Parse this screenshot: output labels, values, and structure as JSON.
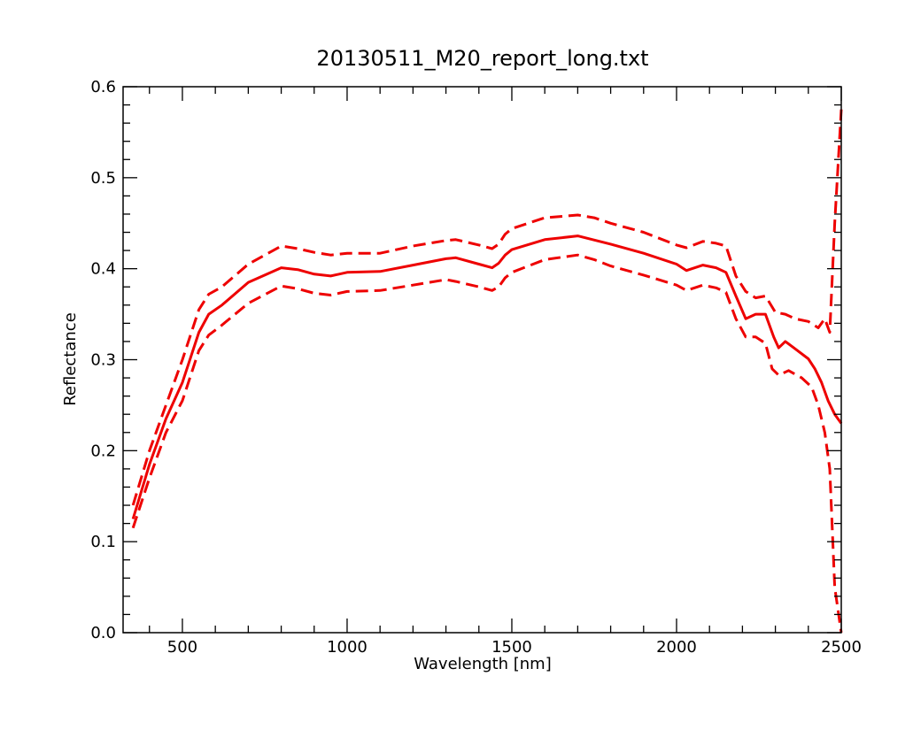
{
  "chart_data": {
    "type": "line",
    "title": "20130511_M20_report_long.txt",
    "xlabel": "Wavelength [nm]",
    "ylabel": "Reflectance",
    "xlim": [
      320,
      2500
    ],
    "ylim": [
      0.0,
      0.6
    ],
    "x_ticks": [
      500,
      1000,
      1500,
      2000,
      2500
    ],
    "x_tick_labels": [
      "500",
      "1000",
      "1500",
      "2000",
      "2500"
    ],
    "y_ticks": [
      0.0,
      0.1,
      0.2,
      0.3,
      0.4,
      0.5,
      0.6
    ],
    "y_tick_labels": [
      "0.0",
      "0.1",
      "0.2",
      "0.3",
      "0.4",
      "0.5",
      "0.6"
    ],
    "grid": false,
    "color": "#ee0000",
    "series": [
      {
        "style": "solid",
        "x": [
          350,
          400,
          450,
          500,
          550,
          580,
          620,
          700,
          800,
          850,
          900,
          950,
          1000,
          1100,
          1200,
          1300,
          1330,
          1400,
          1440,
          1460,
          1480,
          1500,
          1600,
          1700,
          1800,
          1900,
          2000,
          2030,
          2080,
          2120,
          2150,
          2180,
          2210,
          2240,
          2270,
          2295,
          2310,
          2330,
          2360,
          2400,
          2420,
          2440,
          2460,
          2480,
          2500
        ],
        "y": [
          0.125,
          0.185,
          0.235,
          0.275,
          0.33,
          0.35,
          0.36,
          0.385,
          0.401,
          0.399,
          0.394,
          0.392,
          0.396,
          0.397,
          0.404,
          0.411,
          0.412,
          0.405,
          0.401,
          0.406,
          0.415,
          0.421,
          0.432,
          0.436,
          0.427,
          0.417,
          0.405,
          0.398,
          0.404,
          0.401,
          0.396,
          0.37,
          0.345,
          0.35,
          0.35,
          0.325,
          0.313,
          0.32,
          0.312,
          0.301,
          0.29,
          0.275,
          0.255,
          0.24,
          0.23
        ]
      },
      {
        "style": "dashed",
        "x": [
          350,
          400,
          450,
          500,
          550,
          580,
          620,
          700,
          800,
          850,
          900,
          950,
          1000,
          1100,
          1200,
          1300,
          1330,
          1400,
          1440,
          1460,
          1480,
          1500,
          1600,
          1700,
          1750,
          1800,
          1900,
          2000,
          2030,
          2080,
          2120,
          2150,
          2180,
          2210,
          2240,
          2270,
          2300,
          2330,
          2360,
          2400,
          2430,
          2450,
          2465,
          2480,
          2500
        ],
        "y": [
          0.14,
          0.2,
          0.25,
          0.3,
          0.355,
          0.372,
          0.38,
          0.405,
          0.425,
          0.422,
          0.418,
          0.415,
          0.417,
          0.417,
          0.425,
          0.431,
          0.432,
          0.426,
          0.422,
          0.427,
          0.438,
          0.444,
          0.456,
          0.459,
          0.456,
          0.45,
          0.44,
          0.426,
          0.423,
          0.43,
          0.428,
          0.425,
          0.392,
          0.375,
          0.368,
          0.37,
          0.352,
          0.35,
          0.345,
          0.342,
          0.335,
          0.345,
          0.33,
          0.45,
          0.575
        ]
      },
      {
        "style": "dashed",
        "x": [
          350,
          400,
          450,
          500,
          550,
          580,
          620,
          700,
          800,
          850,
          900,
          950,
          1000,
          1100,
          1200,
          1300,
          1330,
          1400,
          1440,
          1460,
          1480,
          1500,
          1600,
          1700,
          1750,
          1800,
          1900,
          2000,
          2030,
          2080,
          2120,
          2150,
          2180,
          2210,
          2240,
          2270,
          2290,
          2310,
          2340,
          2380,
          2410,
          2430,
          2450,
          2465,
          2480,
          2500
        ],
        "y": [
          0.115,
          0.17,
          0.22,
          0.255,
          0.31,
          0.327,
          0.338,
          0.362,
          0.381,
          0.378,
          0.373,
          0.371,
          0.375,
          0.376,
          0.382,
          0.388,
          0.386,
          0.38,
          0.376,
          0.38,
          0.39,
          0.396,
          0.41,
          0.415,
          0.41,
          0.403,
          0.393,
          0.382,
          0.376,
          0.382,
          0.379,
          0.374,
          0.345,
          0.325,
          0.325,
          0.318,
          0.29,
          0.283,
          0.288,
          0.28,
          0.27,
          0.25,
          0.22,
          0.18,
          0.05,
          0.0
        ]
      }
    ]
  }
}
